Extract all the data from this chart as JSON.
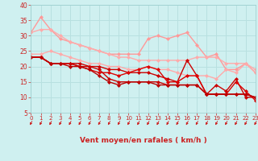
{
  "xlabel": "Vent moyen/en rafales ( km/h )",
  "bg_color": "#cff0f0",
  "grid_color": "#b8e0e0",
  "xmin": 0,
  "xmax": 23,
  "ymin": 5,
  "ymax": 40,
  "yticks": [
    5,
    10,
    15,
    20,
    25,
    30,
    35,
    40
  ],
  "lines_light": [
    {
      "x": [
        0,
        1,
        2,
        3,
        4,
        5,
        6,
        7,
        8,
        9,
        10,
        11,
        12,
        13,
        14,
        15,
        16,
        17,
        18,
        19,
        20,
        21,
        22,
        23
      ],
      "y": [
        31,
        36,
        32,
        29,
        28,
        27,
        26,
        25,
        24,
        24,
        24,
        24,
        29,
        30,
        29,
        30,
        31,
        27,
        23,
        24,
        19,
        19,
        21,
        18
      ],
      "color": "#ff9999",
      "lw": 1.0,
      "ms": 2.5
    },
    {
      "x": [
        0,
        1,
        2,
        3,
        4,
        5,
        6,
        7,
        8,
        9,
        10,
        11,
        12,
        13,
        14,
        15,
        16,
        17,
        18,
        19,
        20,
        21,
        22,
        23
      ],
      "y": [
        31,
        32,
        32,
        30,
        28,
        27,
        26,
        25,
        24,
        23,
        23,
        22,
        22,
        22,
        22,
        22,
        22,
        23,
        23,
        23,
        21,
        21,
        21,
        19
      ],
      "color": "#ffaaaa",
      "lw": 1.0,
      "ms": 2.5
    },
    {
      "x": [
        0,
        1,
        2,
        3,
        4,
        5,
        6,
        7,
        8,
        9,
        10,
        11,
        12,
        13,
        14,
        15,
        16,
        17,
        18,
        19,
        20,
        21,
        22,
        23
      ],
      "y": [
        24,
        24,
        25,
        24,
        23,
        22,
        21,
        21,
        20,
        20,
        19,
        19,
        20,
        19,
        19,
        18,
        17,
        17,
        17,
        16,
        19,
        18,
        21,
        18
      ],
      "color": "#ffaaaa",
      "lw": 1.0,
      "ms": 2.5
    }
  ],
  "lines_dark": [
    {
      "x": [
        0,
        1,
        2,
        3,
        4,
        5,
        6,
        7,
        8,
        9,
        10,
        11,
        12,
        13,
        14,
        15,
        16,
        17,
        18,
        19,
        20,
        21,
        22,
        23
      ],
      "y": [
        23,
        23,
        21,
        21,
        21,
        21,
        20,
        20,
        19,
        19,
        18,
        18,
        18,
        17,
        16,
        15,
        22,
        17,
        11,
        14,
        12,
        16,
        10,
        10
      ],
      "color": "#cc0000",
      "lw": 1.0,
      "ms": 2.5
    },
    {
      "x": [
        0,
        1,
        2,
        3,
        4,
        5,
        6,
        7,
        8,
        9,
        10,
        11,
        12,
        13,
        14,
        15,
        16,
        17,
        18,
        19,
        20,
        21,
        22,
        23
      ],
      "y": [
        23,
        23,
        21,
        21,
        21,
        20,
        19,
        18,
        18,
        17,
        18,
        19,
        20,
        19,
        15,
        15,
        17,
        17,
        11,
        11,
        11,
        15,
        12,
        9
      ],
      "color": "#dd0000",
      "lw": 1.0,
      "ms": 2.5
    },
    {
      "x": [
        0,
        1,
        2,
        3,
        4,
        5,
        6,
        7,
        8,
        9,
        10,
        11,
        12,
        13,
        14,
        15,
        16,
        17,
        18,
        19,
        20,
        21,
        22,
        23
      ],
      "y": [
        23,
        23,
        21,
        21,
        21,
        20,
        20,
        19,
        16,
        15,
        15,
        15,
        15,
        15,
        14,
        14,
        14,
        14,
        11,
        11,
        11,
        11,
        11,
        10
      ],
      "color": "#cc0000",
      "lw": 1.0,
      "ms": 2.5
    },
    {
      "x": [
        0,
        1,
        2,
        3,
        4,
        5,
        6,
        7,
        8,
        9,
        10,
        11,
        12,
        13,
        14,
        15,
        16,
        17,
        18,
        19,
        20,
        21,
        22,
        23
      ],
      "y": [
        23,
        23,
        21,
        21,
        20,
        20,
        19,
        17,
        15,
        14,
        15,
        15,
        15,
        14,
        14,
        14,
        14,
        14,
        11,
        11,
        11,
        11,
        11,
        10
      ],
      "color": "#bb0000",
      "lw": 1.0,
      "ms": 2.5
    }
  ],
  "arrow_color": "#cc2222",
  "tick_color": "#cc2222",
  "label_color": "#cc2222"
}
